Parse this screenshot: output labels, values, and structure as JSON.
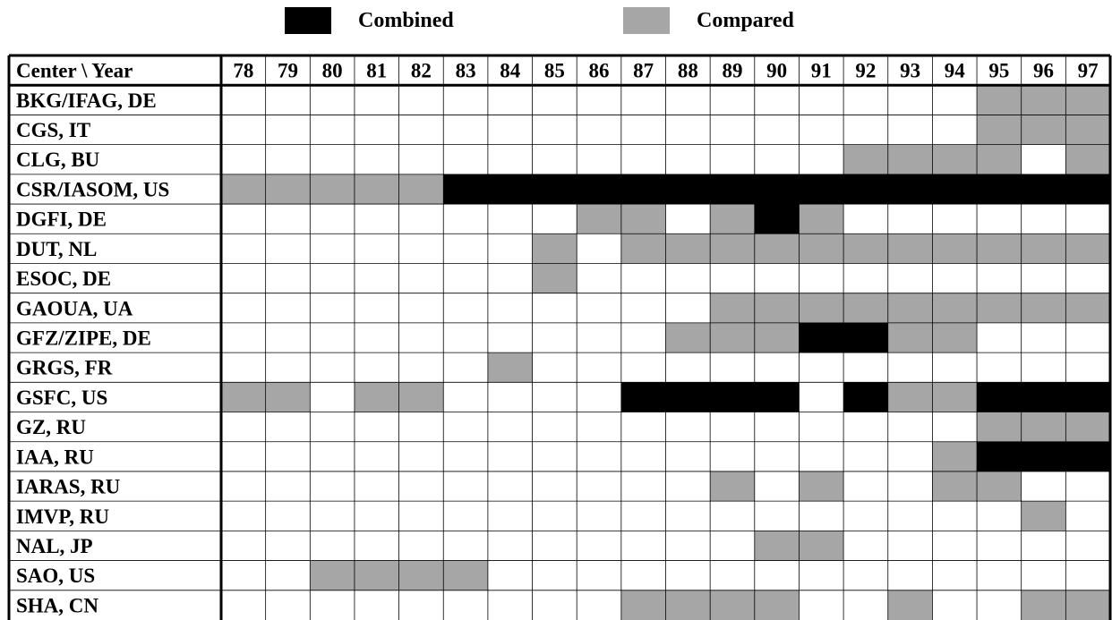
{
  "legend": {
    "combined_label": "Combined",
    "compared_label": "Compared",
    "combined_color": "#000000",
    "compared_color": "#a6a6a6"
  },
  "header": {
    "corner_label": "Center \\ Year"
  },
  "chart_data": {
    "type": "table",
    "years": [
      "78",
      "79",
      "80",
      "81",
      "82",
      "83",
      "84",
      "85",
      "86",
      "87",
      "88",
      "89",
      "90",
      "91",
      "92",
      "93",
      "94",
      "95",
      "96",
      "97"
    ],
    "codes": {
      "0": "none",
      "1": "Compared",
      "2": "Combined"
    },
    "rows": [
      {
        "center": "BKG/IFAG, DE",
        "status": [
          0,
          0,
          0,
          0,
          0,
          0,
          0,
          0,
          0,
          0,
          0,
          0,
          0,
          0,
          0,
          0,
          0,
          1,
          1,
          1
        ]
      },
      {
        "center": "CGS, IT",
        "status": [
          0,
          0,
          0,
          0,
          0,
          0,
          0,
          0,
          0,
          0,
          0,
          0,
          0,
          0,
          0,
          0,
          0,
          1,
          1,
          1
        ]
      },
      {
        "center": "CLG, BU",
        "status": [
          0,
          0,
          0,
          0,
          0,
          0,
          0,
          0,
          0,
          0,
          0,
          0,
          0,
          0,
          1,
          1,
          1,
          1,
          0,
          1
        ]
      },
      {
        "center": "CSR/IASOM, US",
        "status": [
          1,
          1,
          1,
          1,
          1,
          2,
          2,
          2,
          2,
          2,
          2,
          2,
          2,
          2,
          2,
          2,
          2,
          2,
          2,
          2
        ]
      },
      {
        "center": "DGFI, DE",
        "status": [
          0,
          0,
          0,
          0,
          0,
          0,
          0,
          0,
          1,
          1,
          0,
          1,
          2,
          1,
          0,
          0,
          0,
          0,
          0,
          0
        ]
      },
      {
        "center": "DUT, NL",
        "status": [
          0,
          0,
          0,
          0,
          0,
          0,
          0,
          1,
          0,
          1,
          1,
          1,
          1,
          1,
          1,
          1,
          1,
          1,
          1,
          1
        ]
      },
      {
        "center": "ESOC, DE",
        "status": [
          0,
          0,
          0,
          0,
          0,
          0,
          0,
          1,
          0,
          0,
          0,
          0,
          0,
          0,
          0,
          0,
          0,
          0,
          0,
          0
        ]
      },
      {
        "center": "GAOUA, UA",
        "status": [
          0,
          0,
          0,
          0,
          0,
          0,
          0,
          0,
          0,
          0,
          0,
          1,
          1,
          1,
          1,
          1,
          1,
          1,
          1,
          1
        ]
      },
      {
        "center": "GFZ/ZIPE, DE",
        "status": [
          0,
          0,
          0,
          0,
          0,
          0,
          0,
          0,
          0,
          0,
          1,
          1,
          1,
          2,
          2,
          1,
          1,
          0,
          0,
          0
        ]
      },
      {
        "center": "GRGS, FR",
        "status": [
          0,
          0,
          0,
          0,
          0,
          0,
          1,
          0,
          0,
          0,
          0,
          0,
          0,
          0,
          0,
          0,
          0,
          0,
          0,
          0
        ]
      },
      {
        "center": "GSFC, US",
        "status": [
          1,
          1,
          0,
          1,
          1,
          0,
          0,
          0,
          0,
          2,
          2,
          2,
          2,
          0,
          2,
          1,
          1,
          2,
          2,
          2
        ]
      },
      {
        "center": "GZ, RU",
        "status": [
          0,
          0,
          0,
          0,
          0,
          0,
          0,
          0,
          0,
          0,
          0,
          0,
          0,
          0,
          0,
          0,
          0,
          1,
          1,
          1
        ]
      },
      {
        "center": "IAA, RU",
        "status": [
          0,
          0,
          0,
          0,
          0,
          0,
          0,
          0,
          0,
          0,
          0,
          0,
          0,
          0,
          0,
          0,
          1,
          2,
          2,
          2
        ]
      },
      {
        "center": "IARAS, RU",
        "status": [
          0,
          0,
          0,
          0,
          0,
          0,
          0,
          0,
          0,
          0,
          0,
          1,
          0,
          1,
          0,
          0,
          1,
          1,
          0,
          0
        ]
      },
      {
        "center": "IMVP, RU",
        "status": [
          0,
          0,
          0,
          0,
          0,
          0,
          0,
          0,
          0,
          0,
          0,
          0,
          0,
          0,
          0,
          0,
          0,
          0,
          1,
          0
        ]
      },
      {
        "center": "NAL, JP",
        "status": [
          0,
          0,
          0,
          0,
          0,
          0,
          0,
          0,
          0,
          0,
          0,
          0,
          1,
          1,
          0,
          0,
          0,
          0,
          0,
          0
        ]
      },
      {
        "center": "SAO, US",
        "status": [
          0,
          0,
          1,
          1,
          1,
          1,
          0,
          0,
          0,
          0,
          0,
          0,
          0,
          0,
          0,
          0,
          0,
          0,
          0,
          0
        ]
      },
      {
        "center": "SHA, CN",
        "status": [
          0,
          0,
          0,
          0,
          0,
          0,
          0,
          0,
          0,
          1,
          1,
          1,
          1,
          0,
          0,
          1,
          0,
          0,
          1,
          1
        ]
      }
    ]
  }
}
